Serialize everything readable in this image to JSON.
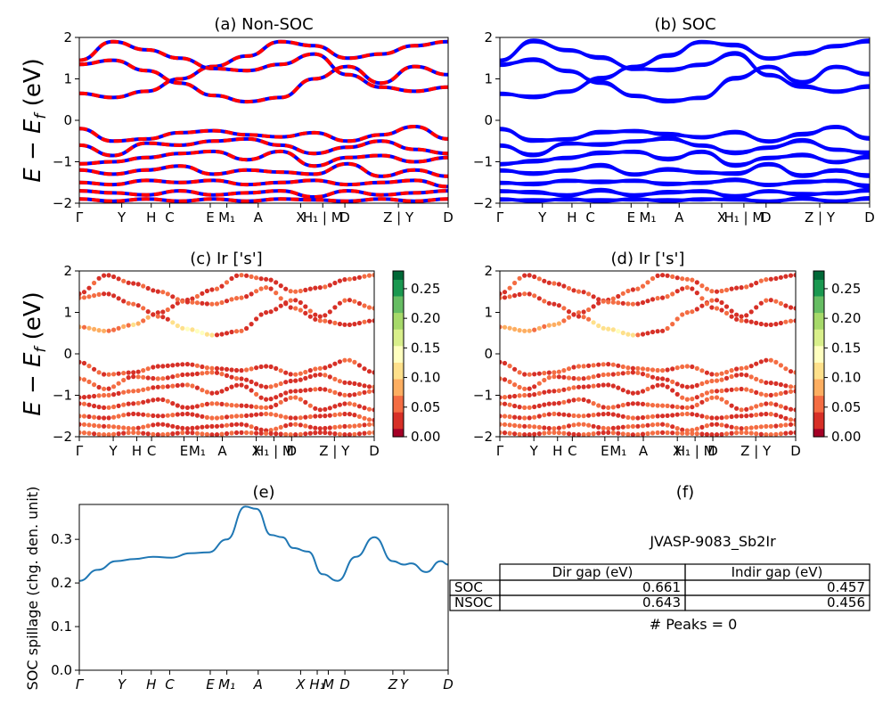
{
  "colors": {
    "nonsoc_red": "#ff0000",
    "nonsoc_blue": "#0000ff",
    "soc_blue": "#0000ff",
    "spillage_line": "#1f77b4",
    "colormap": [
      "#a50026",
      "#d73027",
      "#f46d43",
      "#fdae61",
      "#fee08b",
      "#ffffbf",
      "#d9ef8b",
      "#a6d96a",
      "#66bd63",
      "#1a9850",
      "#006837"
    ]
  },
  "band_kpath": [
    "Γ",
    "Y",
    "H",
    "C",
    "E",
    "M₁",
    "A",
    "X",
    "H₁",
    "M",
    "D",
    "Z",
    "Y",
    "D"
  ],
  "spillage_kpath": [
    "Γ",
    "Y",
    "H",
    "C",
    "E",
    "M₁",
    "A",
    "X",
    "H₁",
    "M",
    "D",
    "Z",
    "Y",
    "D"
  ],
  "panels": {
    "a": {
      "title": "(a) Non-SOC",
      "ylabel": "E − E",
      "ylabel_sub": "f",
      "ylabel_unit": " (eV)"
    },
    "b": {
      "title": "(b) SOC"
    },
    "c": {
      "title": "(c)  Ir ['s']",
      "ylabel": "E − E",
      "ylabel_sub": "f",
      "ylabel_unit": " (eV)"
    },
    "d": {
      "title": "(d) Ir ['s']"
    },
    "e": {
      "title": "(e)",
      "ylabel": "SOC spillage (chg. den. unit)"
    },
    "f": {
      "title": "(f)",
      "material": "JVASP-9083_Sb2Ir",
      "table_headers": [
        "Dir gap (eV)",
        "Indir gap (eV)"
      ],
      "table_rows": [
        {
          "label": "SOC",
          "dir_gap": "0.661",
          "indir_gap": "0.457"
        },
        {
          "label": "NSOC",
          "dir_gap": "0.643",
          "indir_gap": "0.456"
        }
      ],
      "peaks": "# Peaks = 0"
    }
  },
  "colorbar": {
    "ticks": [
      "0.00",
      "0.05",
      "0.10",
      "0.15",
      "0.20",
      "0.25"
    ],
    "range": [
      0,
      0.28
    ]
  },
  "chart_data": [
    {
      "type": "line",
      "title": "(a) Non-SOC",
      "ylabel": "E − E_f (eV)",
      "ylim": [
        -2,
        2
      ],
      "yticks": [
        -2,
        -1,
        0,
        1,
        2
      ],
      "xticklabels": [
        "Γ",
        "Y",
        "H",
        "C",
        "E",
        "M₁",
        "A",
        "X",
        "H₁ | M",
        "D",
        "Z | Y",
        "D"
      ],
      "style": "dashed red/blue overlay",
      "series": [
        {
          "values": [
            0.65,
            0.55,
            0.7,
            1.0,
            1.3,
            1.55,
            1.9,
            1.8,
            1.5,
            1.6,
            1.8,
            1.9
          ]
        },
        {
          "values": [
            1.35,
            1.45,
            1.2,
            0.9,
            0.6,
            0.45,
            0.55,
            1.0,
            1.3,
            0.9,
            1.3,
            1.1
          ]
        },
        {
          "values": [
            1.45,
            1.9,
            1.7,
            1.5,
            1.25,
            1.2,
            1.35,
            1.6,
            1.1,
            0.8,
            0.7,
            0.8
          ]
        },
        {
          "values": [
            -0.2,
            -0.5,
            -0.45,
            -0.3,
            -0.25,
            -0.35,
            -0.4,
            -0.3,
            -0.5,
            -0.35,
            -0.15,
            -0.45
          ]
        },
        {
          "values": [
            -0.6,
            -0.85,
            -0.55,
            -0.6,
            -0.5,
            -0.45,
            -0.6,
            -0.8,
            -0.65,
            -0.5,
            -0.7,
            -0.8
          ]
        },
        {
          "values": [
            -1.05,
            -1.0,
            -0.9,
            -0.8,
            -0.75,
            -0.95,
            -0.75,
            -1.1,
            -0.9,
            -0.85,
            -1.0,
            -0.9
          ]
        },
        {
          "values": [
            -1.2,
            -1.3,
            -1.2,
            -1.1,
            -1.3,
            -1.2,
            -1.25,
            -1.3,
            -1.05,
            -1.35,
            -1.2,
            -1.35
          ]
        },
        {
          "values": [
            -1.5,
            -1.55,
            -1.45,
            -1.5,
            -1.45,
            -1.55,
            -1.5,
            -1.45,
            -1.55,
            -1.5,
            -1.45,
            -1.6
          ]
        },
        {
          "values": [
            -1.7,
            -1.75,
            -1.8,
            -1.7,
            -1.8,
            -1.75,
            -1.7,
            -1.85,
            -1.7,
            -1.8,
            -1.75,
            -1.7
          ]
        },
        {
          "values": [
            -1.9,
            -1.95,
            -1.9,
            -1.95,
            -1.9,
            -1.95,
            -1.9,
            -1.92,
            -1.95,
            -1.9,
            -1.95,
            -1.9
          ]
        }
      ]
    },
    {
      "type": "line",
      "title": "(b) SOC",
      "ylim": [
        -2,
        2
      ],
      "yticks": [
        -2,
        -1,
        0,
        1,
        2
      ],
      "xticklabels": [
        "Γ",
        "Y",
        "H",
        "C",
        "E",
        "M₁",
        "A",
        "X",
        "H₁ | M",
        "D",
        "Z | Y",
        "D"
      ],
      "series": [
        {
          "values": [
            0.65,
            0.55,
            0.7,
            1.0,
            1.3,
            1.55,
            1.9,
            1.8,
            1.5,
            1.6,
            1.8,
            1.9
          ]
        },
        {
          "values": [
            1.35,
            1.45,
            1.2,
            0.9,
            0.6,
            0.45,
            0.55,
            1.0,
            1.3,
            0.9,
            1.3,
            1.1
          ]
        },
        {
          "values": [
            1.45,
            1.9,
            1.7,
            1.5,
            1.25,
            1.2,
            1.35,
            1.6,
            1.1,
            0.8,
            0.7,
            0.8
          ]
        },
        {
          "values": [
            -0.2,
            -0.5,
            -0.45,
            -0.3,
            -0.25,
            -0.35,
            -0.4,
            -0.3,
            -0.5,
            -0.35,
            -0.15,
            -0.45
          ]
        },
        {
          "values": [
            -0.6,
            -0.85,
            -0.55,
            -0.6,
            -0.5,
            -0.45,
            -0.6,
            -0.8,
            -0.65,
            -0.5,
            -0.7,
            -0.8
          ]
        },
        {
          "values": [
            -1.05,
            -1.0,
            -0.9,
            -0.8,
            -0.75,
            -0.95,
            -0.75,
            -1.1,
            -0.9,
            -0.85,
            -1.0,
            -0.9
          ]
        },
        {
          "values": [
            -1.2,
            -1.3,
            -1.2,
            -1.1,
            -1.3,
            -1.2,
            -1.25,
            -1.3,
            -1.05,
            -1.35,
            -1.2,
            -1.35
          ]
        },
        {
          "values": [
            -1.5,
            -1.55,
            -1.45,
            -1.5,
            -1.45,
            -1.55,
            -1.5,
            -1.45,
            -1.55,
            -1.5,
            -1.45,
            -1.6
          ]
        },
        {
          "values": [
            -1.7,
            -1.75,
            -1.8,
            -1.7,
            -1.8,
            -1.75,
            -1.7,
            -1.85,
            -1.7,
            -1.8,
            -1.75,
            -1.7
          ]
        },
        {
          "values": [
            -1.9,
            -1.95,
            -1.9,
            -1.95,
            -1.9,
            -1.95,
            -1.9,
            -1.92,
            -1.95,
            -1.9,
            -1.95,
            -1.9
          ]
        }
      ]
    },
    {
      "type": "scatter",
      "title": "(c)  Ir ['s']",
      "ylabel": "E − E_f (eV)",
      "ylim": [
        -2,
        2
      ],
      "colorbar_range": [
        0,
        0.28
      ],
      "xticklabels": [
        "Γ",
        "Y",
        "H",
        "C",
        "E",
        "M₁",
        "A",
        "X",
        "H₁ | M",
        "D",
        "Z | Y",
        "D"
      ],
      "note": "band points colored by Ir s-orbital weight, mostly 0.00–0.10"
    },
    {
      "type": "scatter",
      "title": "(d) Ir ['s']",
      "ylim": [
        -2,
        2
      ],
      "colorbar_range": [
        0,
        0.28
      ],
      "xticklabels": [
        "Γ",
        "Y",
        "H",
        "C",
        "E",
        "M₁",
        "A",
        "X",
        "H₁ | M",
        "D",
        "Z | Y",
        "D"
      ]
    },
    {
      "type": "line",
      "title": "(e)",
      "ylabel": "SOC spillage (chg. den. unit)",
      "ylim": [
        0,
        0.38
      ],
      "yticks": [
        0.0,
        0.1,
        0.2,
        0.3
      ],
      "xticklabels": [
        "Γ",
        "Y",
        "H",
        "C",
        "E",
        "M₁",
        "A",
        "X",
        "H₁",
        "M",
        "D",
        "Z",
        "Y",
        "D"
      ],
      "x": [
        0,
        0.05,
        0.1,
        0.15,
        0.2,
        0.25,
        0.3,
        0.35,
        0.4,
        0.45,
        0.48,
        0.52,
        0.55,
        0.58,
        0.62,
        0.66,
        0.7,
        0.75,
        0.8,
        0.85,
        0.88,
        0.9,
        0.94,
        0.98,
        1.0
      ],
      "values": [
        0.205,
        0.23,
        0.25,
        0.255,
        0.26,
        0.258,
        0.268,
        0.27,
        0.3,
        0.375,
        0.37,
        0.31,
        0.305,
        0.28,
        0.272,
        0.22,
        0.205,
        0.26,
        0.305,
        0.25,
        0.242,
        0.245,
        0.225,
        0.25,
        0.242
      ]
    }
  ]
}
